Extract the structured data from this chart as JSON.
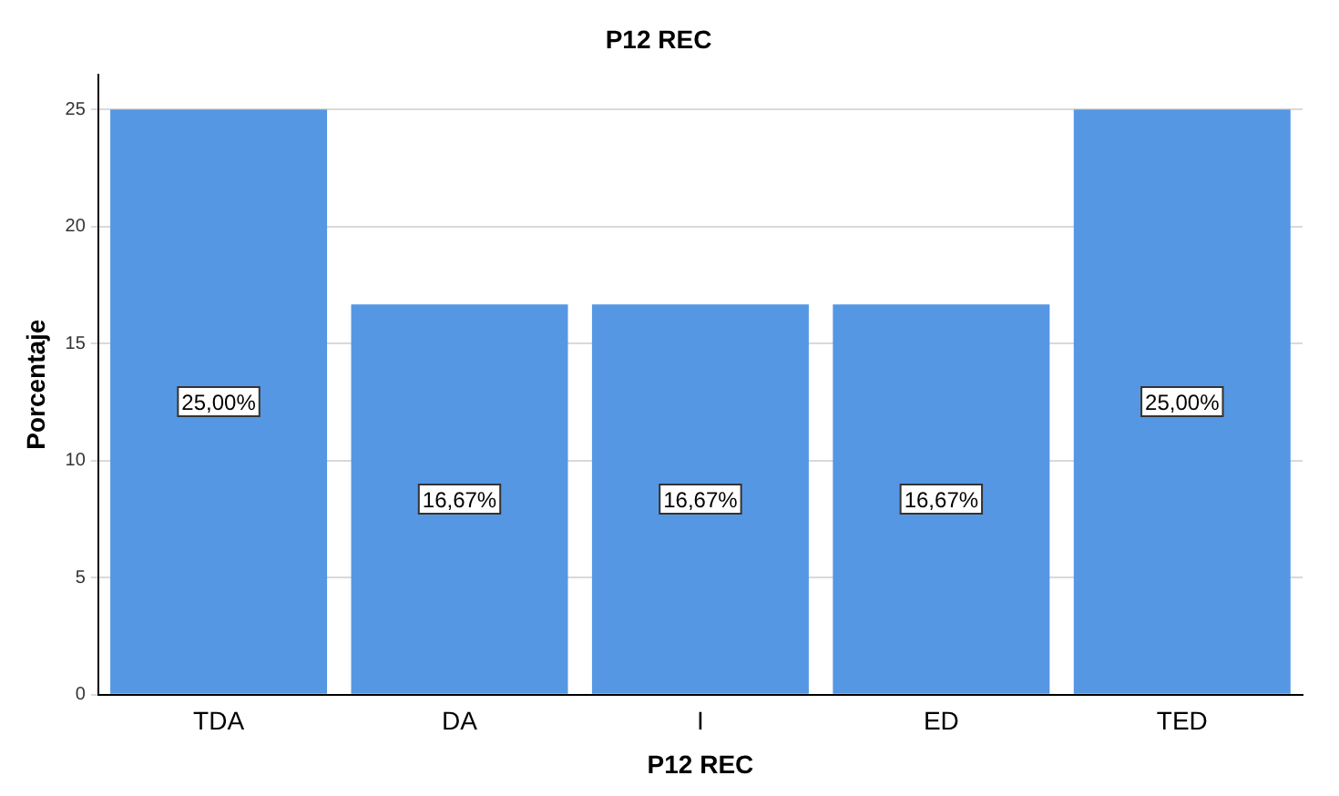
{
  "chart_data": {
    "type": "bar",
    "title": "P12 REC",
    "xlabel": "P12 REC",
    "ylabel": "Porcentaje",
    "categories": [
      "TDA",
      "DA",
      "I",
      "ED",
      "TED"
    ],
    "values": [
      25,
      16.67,
      16.67,
      16.67,
      25
    ],
    "value_labels": [
      "25,00%",
      "16,67%",
      "16,67%",
      "16,67%",
      "25,00%"
    ],
    "color": "#5597e3",
    "ylim": [
      0,
      26.5
    ],
    "yticks": [
      0,
      5,
      10,
      15,
      20,
      25
    ],
    "grid": "y",
    "legend": false
  }
}
